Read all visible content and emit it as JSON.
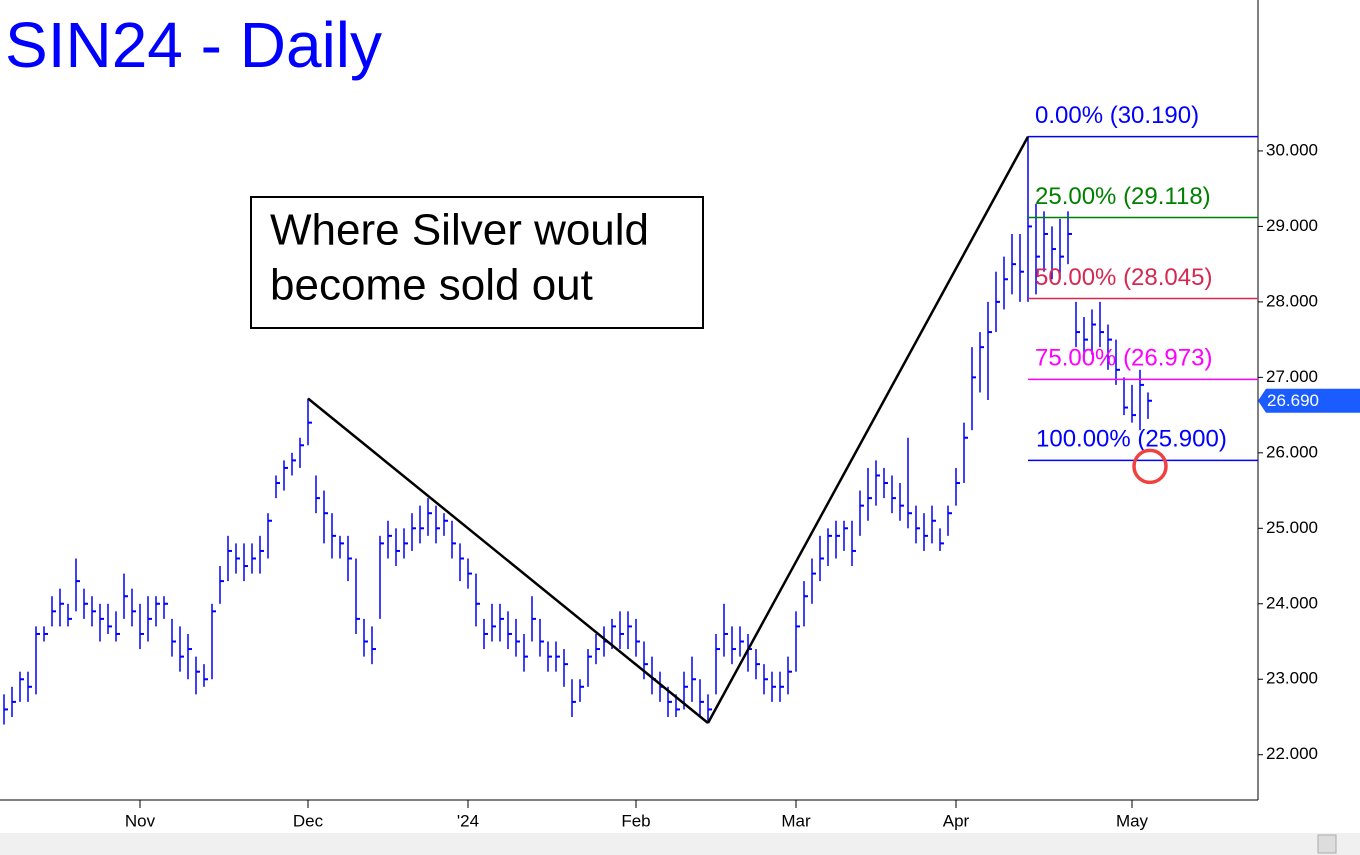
{
  "chart_data": {
    "type": "ohlc",
    "title": "SIN24 - Daily",
    "color": "#0000ff",
    "ylim": [
      21.4,
      32.0
    ],
    "yticks": [
      {
        "value": 22,
        "label": "22.000"
      },
      {
        "value": 23,
        "label": "23.000"
      },
      {
        "value": 24,
        "label": "24.000"
      },
      {
        "value": 25,
        "label": "25.000"
      },
      {
        "value": 26,
        "label": "26.000"
      },
      {
        "value": 27,
        "label": "27.000"
      },
      {
        "value": 28,
        "label": "28.000"
      },
      {
        "value": 29,
        "label": "29.000"
      },
      {
        "value": 30,
        "label": "30.000"
      }
    ],
    "categories": [
      null,
      null,
      null,
      null,
      null,
      null,
      null,
      null,
      null,
      null,
      null,
      null,
      null,
      null,
      null,
      null,
      null,
      "Nov",
      null,
      null,
      null,
      null,
      null,
      null,
      null,
      null,
      null,
      null,
      null,
      null,
      null,
      null,
      null,
      null,
      null,
      null,
      null,
      null,
      "Dec",
      null,
      null,
      null,
      null,
      null,
      null,
      null,
      null,
      null,
      null,
      null,
      null,
      null,
      null,
      null,
      null,
      null,
      null,
      null,
      "'24",
      null,
      null,
      null,
      null,
      null,
      null,
      null,
      null,
      null,
      null,
      null,
      null,
      null,
      null,
      null,
      null,
      null,
      null,
      null,
      null,
      "Feb",
      null,
      null,
      null,
      null,
      null,
      null,
      null,
      null,
      null,
      null,
      null,
      null,
      null,
      null,
      null,
      null,
      null,
      null,
      null,
      "Mar",
      null,
      null,
      null,
      null,
      null,
      null,
      null,
      null,
      null,
      null,
      null,
      null,
      null,
      null,
      null,
      null,
      null,
      null,
      null,
      "Apr",
      null,
      null,
      null,
      null,
      null,
      null,
      null,
      null,
      null,
      null,
      null,
      null,
      null,
      null,
      null,
      null,
      null,
      null,
      null,
      null,
      null,
      "May",
      null,
      null
    ],
    "high": [
      22.8,
      22.9,
      23.1,
      23.1,
      23.7,
      23.7,
      24.1,
      24.2,
      24.0,
      24.6,
      24.2,
      24.1,
      24.0,
      24.0,
      23.9,
      24.4,
      24.2,
      24.0,
      24.1,
      24.1,
      24.1,
      23.8,
      23.7,
      23.6,
      23.3,
      23.2,
      24.0,
      24.5,
      24.9,
      24.8,
      24.8,
      24.8,
      24.9,
      25.2,
      25.7,
      25.9,
      26.0,
      26.2,
      26.72,
      25.7,
      25.5,
      25.2,
      24.9,
      24.9,
      24.6,
      23.8,
      23.7,
      24.9,
      25.1,
      25.0,
      25.0,
      25.2,
      25.3,
      25.4,
      25.3,
      25.2,
      25.1,
      24.8,
      24.6,
      24.4,
      23.8,
      24.0,
      24.0,
      23.9,
      23.8,
      23.6,
      24.1,
      23.8,
      23.5,
      23.5,
      23.4,
      23.0,
      23.0,
      23.4,
      23.6,
      23.7,
      23.8,
      23.9,
      23.9,
      23.8,
      23.5,
      23.3,
      23.1,
      22.9,
      22.8,
      23.1,
      23.3,
      23.0,
      22.8,
      23.6,
      24.0,
      23.7,
      23.7,
      23.6,
      23.4,
      23.2,
      23.1,
      23.1,
      23.3,
      23.9,
      24.3,
      24.6,
      24.9,
      25.0,
      25.1,
      25.1,
      25.1,
      25.5,
      25.8,
      25.9,
      25.8,
      25.7,
      25.6,
      26.2,
      25.3,
      25.2,
      25.3,
      25.0,
      25.3,
      25.8,
      26.4,
      27.4,
      27.6,
      28.0,
      28.4,
      28.6,
      28.9,
      28.9,
      30.19,
      29.3,
      29.2,
      29.0,
      29.1,
      29.2,
      28.0,
      27.8,
      27.9,
      28.0,
      27.7,
      27.5,
      27.0,
      26.9,
      27.1,
      26.8
    ],
    "low": [
      22.4,
      22.5,
      22.7,
      22.7,
      22.8,
      23.5,
      23.7,
      23.7,
      23.7,
      23.9,
      23.8,
      23.7,
      23.5,
      23.6,
      23.5,
      23.8,
      23.7,
      23.4,
      23.5,
      23.7,
      23.8,
      23.3,
      23.1,
      23.0,
      22.8,
      22.9,
      23.0,
      24.0,
      24.3,
      24.4,
      24.3,
      24.4,
      24.4,
      24.6,
      25.4,
      25.5,
      25.7,
      25.8,
      26.1,
      25.2,
      24.8,
      24.6,
      24.6,
      24.3,
      23.6,
      23.3,
      23.2,
      23.8,
      24.6,
      24.5,
      24.6,
      24.7,
      24.8,
      24.9,
      24.8,
      24.9,
      24.6,
      24.3,
      24.2,
      23.7,
      23.4,
      23.5,
      23.5,
      23.4,
      23.3,
      23.1,
      23.5,
      23.3,
      23.1,
      23.1,
      22.9,
      22.5,
      22.7,
      22.9,
      23.2,
      23.3,
      23.4,
      23.4,
      23.4,
      23.3,
      23.0,
      22.8,
      22.7,
      22.5,
      22.5,
      22.6,
      22.7,
      22.5,
      22.42,
      22.8,
      23.3,
      23.2,
      23.3,
      23.1,
      23.0,
      22.8,
      22.7,
      22.7,
      22.8,
      23.1,
      23.7,
      24.0,
      24.3,
      24.5,
      24.6,
      24.7,
      24.5,
      24.9,
      25.1,
      25.3,
      25.4,
      25.2,
      25.1,
      25.0,
      24.8,
      24.7,
      24.8,
      24.7,
      24.9,
      25.3,
      25.6,
      26.3,
      26.8,
      26.7,
      27.6,
      27.9,
      28.1,
      28.0,
      28.0,
      28.1,
      28.4,
      28.3,
      28.3,
      28.5,
      27.4,
      27.2,
      27.3,
      27.4,
      27.1,
      26.9,
      26.5,
      26.4,
      26.3,
      26.45
    ],
    "close": [
      22.6,
      22.7,
      23.0,
      22.9,
      23.6,
      23.6,
      23.9,
      24.0,
      23.8,
      24.3,
      24.0,
      23.9,
      23.8,
      23.7,
      23.6,
      24.1,
      23.9,
      23.6,
      23.8,
      24.0,
      24.0,
      23.5,
      23.3,
      23.4,
      23.1,
      23.0,
      23.9,
      24.3,
      24.7,
      24.6,
      24.5,
      24.6,
      24.7,
      25.1,
      25.6,
      25.8,
      25.9,
      26.1,
      26.4,
      25.4,
      25.2,
      24.9,
      24.8,
      24.6,
      23.8,
      23.5,
      23.4,
      24.8,
      24.9,
      24.7,
      24.8,
      25.0,
      25.0,
      25.2,
      25.0,
      25.1,
      24.8,
      24.6,
      24.4,
      24.0,
      23.6,
      23.7,
      23.8,
      23.6,
      23.5,
      23.3,
      23.8,
      23.5,
      23.3,
      23.3,
      23.2,
      22.7,
      22.9,
      23.3,
      23.4,
      23.5,
      23.7,
      23.6,
      23.7,
      23.5,
      23.2,
      23.0,
      22.9,
      22.7,
      22.6,
      22.9,
      23.0,
      22.7,
      22.6,
      23.4,
      23.6,
      23.4,
      23.5,
      23.4,
      23.2,
      23.0,
      22.9,
      22.9,
      23.1,
      23.7,
      24.1,
      24.4,
      24.6,
      24.9,
      24.9,
      25.0,
      24.7,
      25.3,
      25.4,
      25.7,
      25.6,
      25.4,
      25.3,
      25.2,
      25.0,
      24.9,
      25.1,
      24.8,
      25.2,
      25.6,
      26.2,
      27.0,
      27.4,
      27.6,
      28.0,
      28.3,
      28.5,
      28.4,
      29.0,
      28.6,
      28.9,
      28.7,
      28.6,
      28.9,
      27.6,
      27.5,
      27.7,
      27.6,
      27.5,
      27.1,
      26.6,
      26.5,
      26.9,
      26.69
    ],
    "last_price": {
      "value": 26.69,
      "label": "26.690"
    },
    "levels": [
      {
        "label": "0.00% (30.190)",
        "value": 30.19,
        "color": "#0000ff"
      },
      {
        "label": "25.00% (29.118)",
        "value": 29.118,
        "color": "#008000"
      },
      {
        "label": "50.00% (28.045)",
        "value": 28.045,
        "color": "#d62850"
      },
      {
        "label": "75.00% (26.973)",
        "value": 26.973,
        "color": "#ff00ff"
      },
      {
        "label": "100.00% (25.900)",
        "value": 25.9,
        "color": "#0000ff"
      }
    ],
    "annotation": [
      "Where Silver would",
      "become sold out"
    ]
  }
}
